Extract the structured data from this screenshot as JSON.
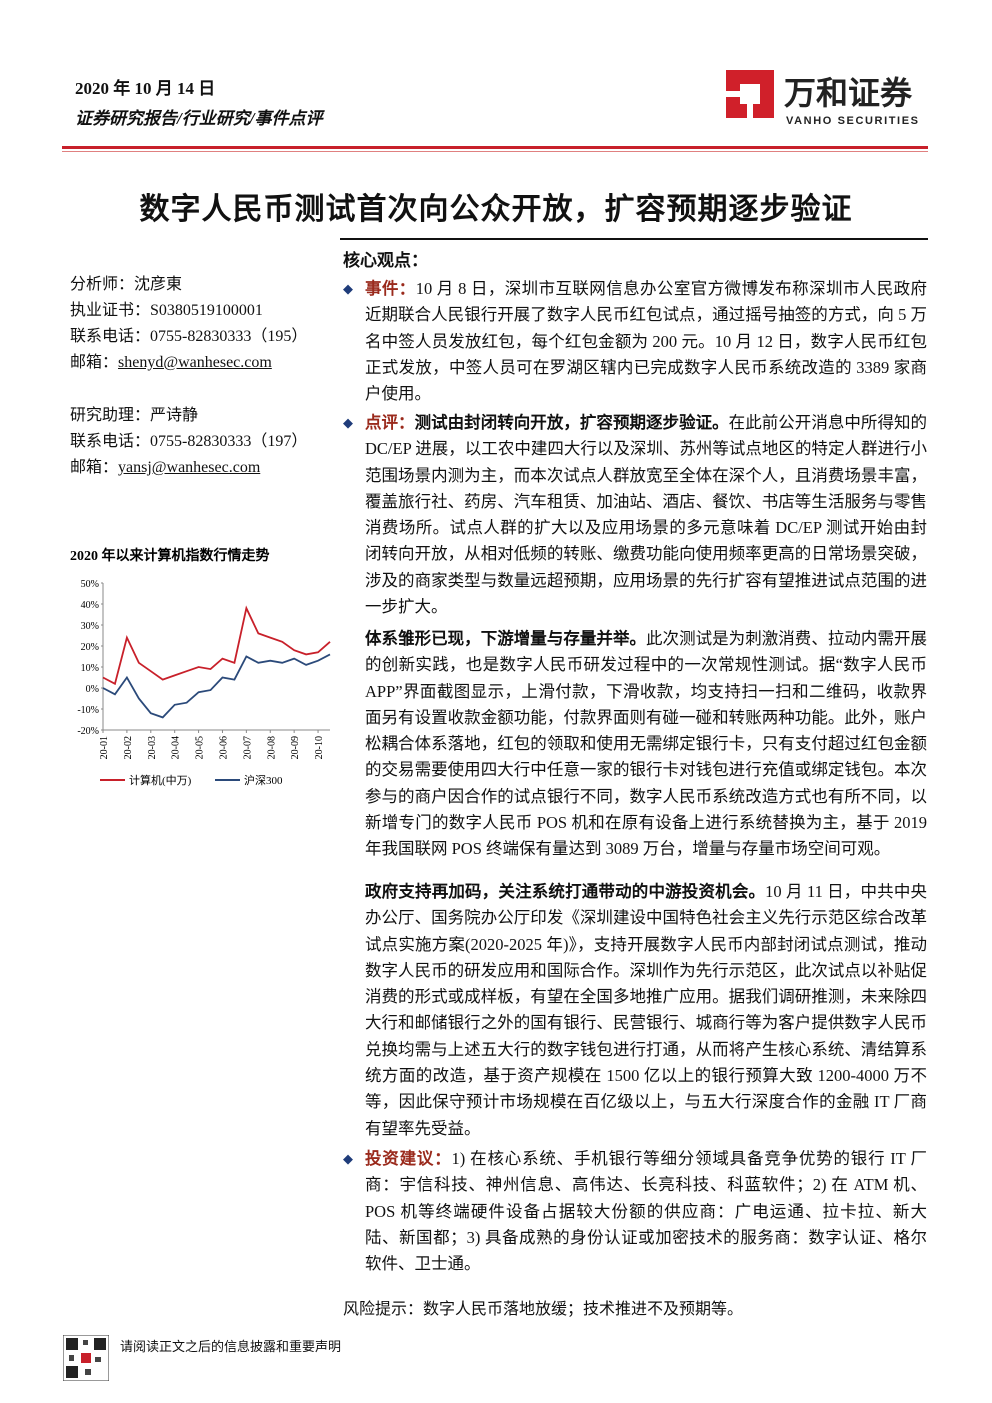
{
  "header": {
    "date": "2020 年 10 月 14 日",
    "category": "证券研究报告/行业研究/事件点评",
    "logo_cn": "万和证券",
    "logo_en": "VANHO SECURITIES"
  },
  "title": "数字人民币测试首次向公众开放，扩容预期逐步验证",
  "sidebar": {
    "contacts": [
      {
        "label": "分析师：",
        "value": "沈彦東"
      },
      {
        "label": "执业证书：",
        "value": "S0380519100001"
      },
      {
        "label": "联系电话：",
        "value": "0755-82830333（195）"
      },
      {
        "label": "邮箱：",
        "value": "shenyd@wanhesec.com"
      },
      {
        "label": "研究助理：",
        "value": "严诗静"
      },
      {
        "label": "联系电话：",
        "value": "0755-82830333（197）"
      },
      {
        "label": "邮箱：",
        "value": "yansj@wanhesec.com"
      }
    ],
    "chart": {
      "type": "line",
      "title": "2020 年以来计算机指数行情走势",
      "categories": [
        "20-01",
        null,
        "20-02",
        null,
        "20-03",
        null,
        "20-04",
        null,
        "20-05",
        null,
        "20-06",
        null,
        "20-07",
        null,
        "20-08",
        null,
        "20-09",
        null,
        "20-10",
        null
      ],
      "series": [
        {
          "name": "计算机(中万)",
          "color": "#c8202a",
          "values": [
            5,
            2,
            24,
            12,
            8,
            4,
            6,
            8,
            10,
            9,
            14,
            12,
            38,
            26,
            24,
            22,
            18,
            16,
            17,
            22
          ]
        },
        {
          "name": "沪深300",
          "color": "#2b4a7a",
          "values": [
            0,
            -3,
            5,
            -5,
            -12,
            -14,
            -8,
            -7,
            -2,
            -1,
            5,
            4,
            15,
            12,
            13,
            12,
            14,
            11,
            13,
            16
          ]
        }
      ],
      "ylim": [
        -20,
        50
      ],
      "yticks": [
        {
          "value": -20,
          "label": "-20%"
        },
        {
          "value": -10,
          "label": "-10%"
        },
        {
          "value": 0,
          "label": "0%"
        },
        {
          "value": 10,
          "label": "10%"
        },
        {
          "value": 20,
          "label": "20%"
        },
        {
          "value": 30,
          "label": "30%"
        },
        {
          "value": 40,
          "label": "40%"
        },
        {
          "value": 50,
          "label": "50%"
        }
      ]
    }
  },
  "body": {
    "heading": "核心观点：",
    "paragraphs": [
      {
        "lead": "事件：",
        "text": "10 月 8 日，深圳市互联网信息办公室官方微博发布称深圳市人民政府近期联合人民银行开展了数字人民币红包试点，通过摇号抽签的方式，向 5 万名中签人员发放红包，每个红包金额为 200 元。10 月 12 日，数字人民币红包正式发放，中签人员可在罗湖区辖内已完成数字人民币系统改造的 3389 家商户使用。"
      },
      {
        "lead": "点评：",
        "bold": "测试由封闭转向开放，扩容预期逐步验证。",
        "text": "在此前公开消息中所得知的 DC/EP 进展，以工农中建四大行以及深圳、苏州等试点地区的特定人群进行小范围场景内测为主，而本次试点人群放宽至全体在深个人，且消费场景丰富，覆盖旅行社、药房、汽车租赁、加油站、酒店、餐饮、书店等生活服务与零售消费场所。试点人群的扩大以及应用场景的多元意味着 DC/EP 测试开始由封闭转向开放，从相对低频的转账、缴费功能向使用频率更高的日常场景突破，涉及的商家类型与数量远超预期，应用场景的先行扩容有望推进试点范围的进一步扩大。"
      },
      {
        "bold": "体系雏形已现，下游增量与存量并举。",
        "text": "此次测试是为刺激消费、拉动内需开展的创新实践，也是数字人民币研发过程中的一次常规性测试。据“数字人民币 APP”界面截图显示，上滑付款，下滑收款，均支持扫一扫和二维码，收款界面另有设置收款金额功能，付款界面则有碰一碰和转账两种功能。此外，账户松耦合体系落地，红包的领取和使用无需绑定银行卡，只有支付超过红包金额的交易需要使用四大行中任意一家的银行卡对钱包进行充值或绑定钱包。本次参与的商户因合作的试点银行不同，数字人民币系统改造方式也有所不同，以新增专门的数字人民币 POS 机和在原有设备上进行系统替换为主，基于 2019 年我国联网 POS 终端保有量达到 3089 万台，增量与存量市场空间可观。"
      },
      {
        "bold": "政府支持再加码，关注系统打通带动的中游投资机会。",
        "text": "10 月 11 日，中共中央办公厅、国务院办公厅印发《深圳建设中国特色社会主义先行示范区综合改革试点实施方案(2020-2025 年)》，支持开展数字人民币内部封闭试点测试，推动数字人民币的研发应用和国际合作。深圳作为先行示范区，此次试点以补贴促消费的形式或成样板，有望在全国多地推广应用。据我们调研推测，未来除四大行和邮储银行之外的国有银行、民营银行、城商行等为客户提供数字人民币兑换均需与上述五大行的数字钱包进行打通，从而将产生核心系统、清结算系统方面的改造，基于资产规模在 1500 亿以上的银行预算大致 1200-4000 万不等，因此保守预计市场规模在百亿级以上，与五大行深度合作的金融 IT 厂商有望率先受益。"
      },
      {
        "lead": "投资建议：",
        "text": "1) 在核心系统、手机银行等细分领域具备竞争优势的银行 IT 厂商：宇信科技、神州信息、高伟达、长亮科技、科蓝软件；2) 在 ATM 机、POS 机等终端硬件设备占据较大份额的供应商：广电运通、拉卡拉、新大陆、新国都；3) 具备成熟的身份认证或加密技术的服务商：数字认证、格尔软件、卫士通。"
      }
    ],
    "risk": "风险提示：数字人民币落地放缓；技术推进不及预期等。"
  },
  "footer": {
    "disclaimer": "请阅读正文之后的信息披露和重要声明"
  }
}
